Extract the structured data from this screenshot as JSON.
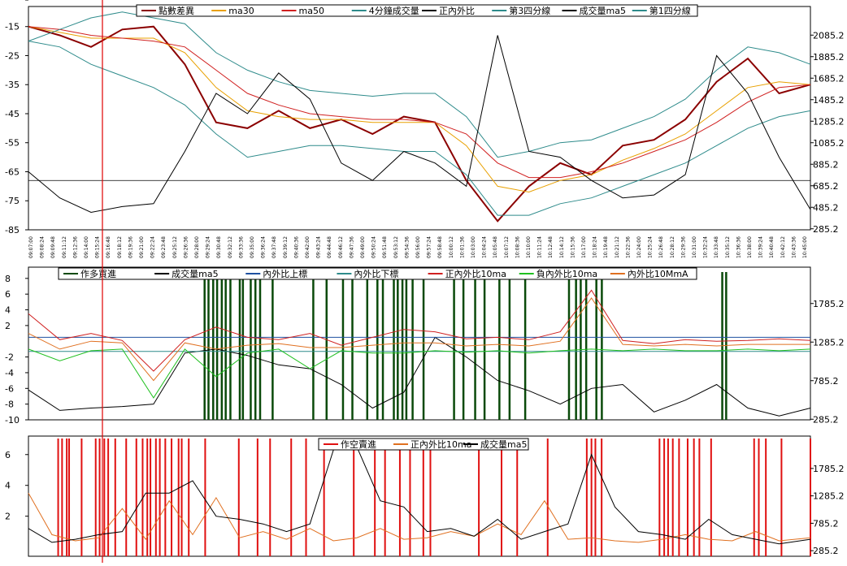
{
  "chart_data": [
    {
      "type": "line",
      "panel": "price",
      "legend": [
        "點數差異",
        "ma30",
        "ma50",
        "4分鐘成交量",
        "正內外比",
        "第3四分線",
        "成交量ma5",
        "第1四分線"
      ],
      "left_ticks": [
        "-15",
        "-25",
        "-35",
        "-45",
        "-55",
        "-65",
        "-75",
        "-85"
      ],
      "right_ticks": [
        "2085.2",
        "1885.2",
        "1685.2",
        "1485.2",
        "1285.2",
        "1085.2",
        "885.2",
        "685.2",
        "485.2",
        "285.2"
      ],
      "ylim": [
        -85,
        -12
      ],
      "date_labels": [
        "09:07:00",
        "09:08:24",
        "09:09:48",
        "09:11:12",
        "09:12:36",
        "09:14:00",
        "09:15:24",
        "09:16:48",
        "09:18:12",
        "09:19:36",
        "09:21:00",
        "09:22:24",
        "09:23:48",
        "09:25:12",
        "09:26:36",
        "09:28:00",
        "09:29:24",
        "09:30:48",
        "09:32:12",
        "09:33:36",
        "09:35:00",
        "09:36:24",
        "09:37:48",
        "09:39:12",
        "09:40:36",
        "09:42:00",
        "09:43:24",
        "09:44:48",
        "09:46:12",
        "09:47:36",
        "09:49:00",
        "09:50:24",
        "09:51:48",
        "09:53:12",
        "09:54:36",
        "09:56:00",
        "09:57:24",
        "09:58:48",
        "10:00:12",
        "10:01:36",
        "10:03:00",
        "10:04:24",
        "10:05:48",
        "10:07:12",
        "10:08:36",
        "10:10:00",
        "10:11:24",
        "10:12:48",
        "10:14:12",
        "10:15:36",
        "10:17:00",
        "10:18:24",
        "10:19:48",
        "10:21:12",
        "10:22:36",
        "10:24:00",
        "10:25:24",
        "10:26:48",
        "10:28:12",
        "10:29:36",
        "10:31:00",
        "10:32:24",
        "10:33:48",
        "10:35:12",
        "10:36:36",
        "10:38:00",
        "10:39:24",
        "10:40:48",
        "10:42:12",
        "10:43:36",
        "10:45:00"
      ],
      "series": [
        {
          "name": "點數差異",
          "color": "#8b0000",
          "x": [
            0,
            4,
            8,
            12,
            16,
            20,
            24,
            28,
            32,
            36,
            40,
            44,
            48,
            52,
            56,
            60,
            64,
            68,
            72,
            76,
            80,
            84,
            88,
            92,
            96,
            100
          ],
          "y": [
            -15,
            -18,
            -22,
            -16,
            -15,
            -28,
            -48,
            -50,
            -44,
            -50,
            -47,
            -52,
            -46,
            -48,
            -68,
            -82,
            -70,
            -62,
            -66,
            -56,
            -54,
            -47,
            -34,
            -26,
            -38,
            -35
          ]
        },
        {
          "name": "ma30",
          "color": "#e8a000",
          "x": [
            0,
            4,
            8,
            12,
            16,
            20,
            24,
            28,
            32,
            36,
            40,
            44,
            48,
            52,
            56,
            60,
            64,
            68,
            72,
            76,
            80,
            84,
            88,
            92,
            96,
            100
          ],
          "y": [
            -15,
            -17,
            -19,
            -19,
            -19,
            -24,
            -36,
            -44,
            -46,
            -47,
            -47,
            -48,
            -48,
            -48,
            -56,
            -70,
            -72,
            -68,
            -66,
            -61,
            -57,
            -52,
            -44,
            -36,
            -34,
            -35
          ]
        },
        {
          "name": "ma50",
          "color": "#d02020",
          "x": [
            0,
            4,
            8,
            12,
            16,
            20,
            24,
            28,
            32,
            36,
            40,
            44,
            48,
            52,
            56,
            60,
            64,
            68,
            72,
            76,
            80,
            84,
            88,
            92,
            96,
            100
          ],
          "y": [
            -15,
            -16,
            -18,
            -19,
            -20,
            -22,
            -30,
            -38,
            -42,
            -45,
            -46,
            -47,
            -47,
            -48,
            -52,
            -62,
            -67,
            -67,
            -65,
            -62,
            -58,
            -54,
            -48,
            -41,
            -36,
            -35
          ]
        },
        {
          "name": "第3四分線",
          "color": "#2e8b8b",
          "x": [
            0,
            4,
            8,
            12,
            16,
            20,
            24,
            28,
            32,
            36,
            40,
            44,
            48,
            52,
            56,
            60,
            64,
            68,
            72,
            76,
            80,
            84,
            88,
            92,
            96,
            100
          ],
          "y": [
            -20,
            -16,
            -12,
            -10,
            -12,
            -14,
            -24,
            -30,
            -34,
            -37,
            -38,
            -39,
            -38,
            -38,
            -46,
            -60,
            -58,
            -55,
            -54,
            -50,
            -46,
            -40,
            -30,
            -22,
            -24,
            -28
          ]
        },
        {
          "name": "第1四分線",
          "color": "#2e8b8b",
          "x": [
            0,
            4,
            8,
            12,
            16,
            20,
            24,
            28,
            32,
            36,
            40,
            44,
            48,
            52,
            56,
            60,
            64,
            68,
            72,
            76,
            80,
            84,
            88,
            92,
            96,
            100
          ],
          "y": [
            -20,
            -22,
            -28,
            -32,
            -36,
            -42,
            -52,
            -60,
            -58,
            -56,
            -56,
            -57,
            -58,
            -58,
            -66,
            -80,
            -80,
            -76,
            -74,
            -70,
            -66,
            -62,
            -56,
            -50,
            -46,
            -44
          ]
        },
        {
          "name": "成交量ma5",
          "color": "#000000",
          "x": [
            0,
            4,
            8,
            12,
            16,
            20,
            24,
            28,
            32,
            36,
            40,
            44,
            48,
            52,
            56,
            60,
            64,
            68,
            72,
            76,
            80,
            84,
            88,
            92,
            96,
            100
          ],
          "y": [
            -65,
            -74,
            -79,
            -77,
            -76,
            -58,
            -38,
            -45,
            -31,
            -40,
            -62,
            -68,
            -58,
            -62,
            -70,
            -18,
            -58,
            -60,
            -68,
            -74,
            -73,
            -66,
            -25,
            -38,
            -60,
            -78
          ]
        }
      ]
    },
    {
      "type": "line",
      "panel": "ratio",
      "legend": [
        "作多買進",
        "成交量ma5",
        "內外比上標",
        "內外比下標",
        "正內外比10ma",
        "負內外比10ma",
        "內外比10MmA"
      ],
      "left_ticks": [
        "8",
        "6",
        "4",
        "2",
        "-",
        "-2",
        "-4",
        "-6",
        "-8",
        "-10"
      ],
      "right_ticks": [
        "1785.2",
        "1285.2",
        "785.2",
        "285.2"
      ],
      "ylim": [
        -10,
        8.5
      ],
      "buy_signals_x": [
        22.5,
        23.0,
        23.6,
        24.1,
        24.7,
        25.2,
        25.8,
        27.0,
        27.4,
        28.4,
        29.0,
        29.6,
        31.2,
        36.4,
        38.1,
        40.2,
        41.4,
        43.3,
        44.6,
        45.3,
        46.7,
        47.2,
        47.8,
        48.3,
        49.1,
        50.5,
        54.4,
        55.6,
        57.1,
        58.3,
        60.2,
        61.5,
        63.5,
        69.1,
        70.0,
        70.6,
        71.3,
        72.6,
        73.3,
        88.7,
        89.2
      ],
      "series": [
        {
          "name": "成交量ma5",
          "color": "#000000",
          "x": [
            0,
            4,
            8,
            12,
            16,
            20,
            24,
            28,
            32,
            36,
            40,
            44,
            48,
            52,
            56,
            60,
            64,
            68,
            72,
            76,
            80,
            84,
            88,
            92,
            96,
            100
          ],
          "y": [
            -6.2,
            -8.8,
            -8.5,
            -8.3,
            -8.0,
            -1.5,
            -1.0,
            -1.8,
            -3.0,
            -3.5,
            -5.5,
            -8.5,
            -6.5,
            0.5,
            -2.0,
            -5.0,
            -6.3,
            -8.0,
            -6.0,
            -5.5,
            -9.0,
            -7.5,
            -5.5,
            -8.5,
            -9.5,
            -8.5
          ]
        },
        {
          "name": "內外比上標",
          "color": "#1e50a0",
          "x": [
            0,
            100
          ],
          "y": [
            0.5,
            0.5
          ]
        },
        {
          "name": "內外比下標",
          "color": "#2e8b8b",
          "x": [
            0,
            100
          ],
          "y": [
            -1.3,
            -1.3
          ]
        },
        {
          "name": "正內外比10ma",
          "color": "#d02020",
          "x": [
            0,
            4,
            8,
            12,
            16,
            20,
            24,
            28,
            32,
            36,
            40,
            44,
            48,
            52,
            56,
            60,
            64,
            68,
            72,
            76,
            80,
            84,
            88,
            92,
            96,
            100
          ],
          "y": [
            3.5,
            0.2,
            1.0,
            0.1,
            -3.8,
            0.2,
            1.8,
            0.5,
            0.2,
            1.0,
            -0.5,
            0.5,
            1.5,
            1.2,
            0.3,
            0.5,
            0.2,
            1.2,
            6.5,
            0.1,
            -0.3,
            0.2,
            0.0,
            0.1,
            0.3,
            0.1
          ]
        },
        {
          "name": "負內外比10ma",
          "color": "#20c020",
          "x": [
            0,
            4,
            8,
            12,
            16,
            20,
            24,
            28,
            32,
            36,
            40,
            44,
            48,
            52,
            56,
            60,
            64,
            68,
            72,
            76,
            80,
            84,
            88,
            92,
            96,
            100
          ],
          "y": [
            -1.0,
            -2.5,
            -1.2,
            -1.0,
            -7.2,
            -1.0,
            -4.5,
            -1.5,
            -1.0,
            -3.5,
            -1.2,
            -1.5,
            -1.5,
            -1.2,
            -1.4,
            -1.2,
            -1.5,
            -1.2,
            -1.0,
            -1.2,
            -1.0,
            -1.2,
            -1.2,
            -1.0,
            -1.2,
            -1.0
          ]
        },
        {
          "name": "內外比10MmA",
          "color": "#e07020",
          "x": [
            0,
            4,
            8,
            12,
            16,
            20,
            24,
            28,
            32,
            36,
            40,
            44,
            48,
            52,
            56,
            60,
            64,
            68,
            72,
            76,
            80,
            84,
            88,
            92,
            96,
            100
          ],
          "y": [
            1.0,
            -1.0,
            0.0,
            -0.2,
            -5.0,
            -0.2,
            -1.0,
            -0.5,
            -0.3,
            -0.8,
            -0.8,
            -0.5,
            -0.2,
            -0.2,
            -0.6,
            -0.4,
            -0.6,
            0.0,
            5.5,
            -0.4,
            -0.6,
            -0.4,
            -0.6,
            -0.4,
            -0.4,
            -0.4
          ]
        }
      ]
    },
    {
      "type": "line",
      "panel": "short",
      "legend": [
        "作空賣進",
        "正內外比10ma",
        "成交量ma5"
      ],
      "left_ticks": [
        "6",
        "4",
        "2",
        "-"
      ],
      "right_ticks": [
        "1785.2",
        "1285.2",
        "785.2",
        "285.2"
      ],
      "ylim": [
        -0.6,
        7.2
      ],
      "sell_signals_x": [
        3.8,
        4.3,
        4.9,
        5.2,
        6.8,
        8.6,
        9.1,
        9.7,
        10.2,
        11.1,
        12.5,
        13.8,
        14.6,
        15.2,
        15.6,
        16.3,
        16.8,
        17.5,
        18.3,
        19.2,
        19.6,
        20.5,
        22.6,
        26.9,
        29.3,
        30.9,
        33.6,
        35.5,
        37.8,
        41.6,
        44.3,
        45.6,
        47.5,
        48.8,
        50.5,
        51.4,
        57.6,
        60.5,
        62.5,
        66.4,
        71.4,
        72.0,
        72.5,
        73.3,
        80.7,
        81.3,
        81.8,
        82.4,
        83.2,
        84.3,
        85.1,
        85.8,
        87.3,
        92.8,
        93.4,
        94.3,
        96.3,
        100.0
      ]
    }
  ],
  "series_short": [
    {
      "name": "正內外比10ma",
      "color": "#e07020",
      "x": [
        0,
        3,
        6,
        9,
        12,
        15,
        18,
        21,
        24,
        27,
        30,
        33,
        36,
        39,
        42,
        45,
        48,
        51,
        54,
        57,
        60,
        63,
        66,
        69,
        72,
        75,
        78,
        81,
        84,
        87,
        90,
        93,
        96,
        100
      ],
      "y": [
        3.5,
        0.8,
        0.4,
        0.6,
        2.5,
        0.5,
        3.0,
        0.8,
        3.2,
        0.6,
        1.0,
        0.5,
        1.2,
        0.4,
        0.6,
        1.2,
        0.5,
        0.6,
        1.0,
        0.7,
        1.5,
        0.8,
        3.0,
        0.5,
        0.6,
        0.4,
        0.3,
        0.5,
        0.8,
        0.5,
        0.4,
        1.0,
        0.4,
        0.6
      ]
    },
    {
      "name": "成交量ma5",
      "color": "#000000",
      "x": [
        0,
        3,
        6,
        9,
        12,
        15,
        18,
        21,
        24,
        27,
        30,
        33,
        36,
        39,
        42,
        45,
        48,
        51,
        54,
        57,
        60,
        63,
        66,
        69,
        72,
        75,
        78,
        81,
        84,
        87,
        90,
        93,
        96,
        100
      ],
      "y": [
        1.2,
        0.3,
        0.5,
        0.8,
        1.0,
        3.5,
        3.5,
        4.3,
        2.0,
        1.8,
        1.5,
        1.0,
        1.5,
        6.3,
        6.5,
        3.0,
        2.6,
        1.0,
        1.2,
        0.7,
        1.8,
        0.5,
        1.0,
        1.5,
        6.0,
        2.6,
        1.0,
        0.8,
        0.5,
        1.8,
        0.8,
        0.5,
        0.2,
        0.5
      ]
    }
  ]
}
